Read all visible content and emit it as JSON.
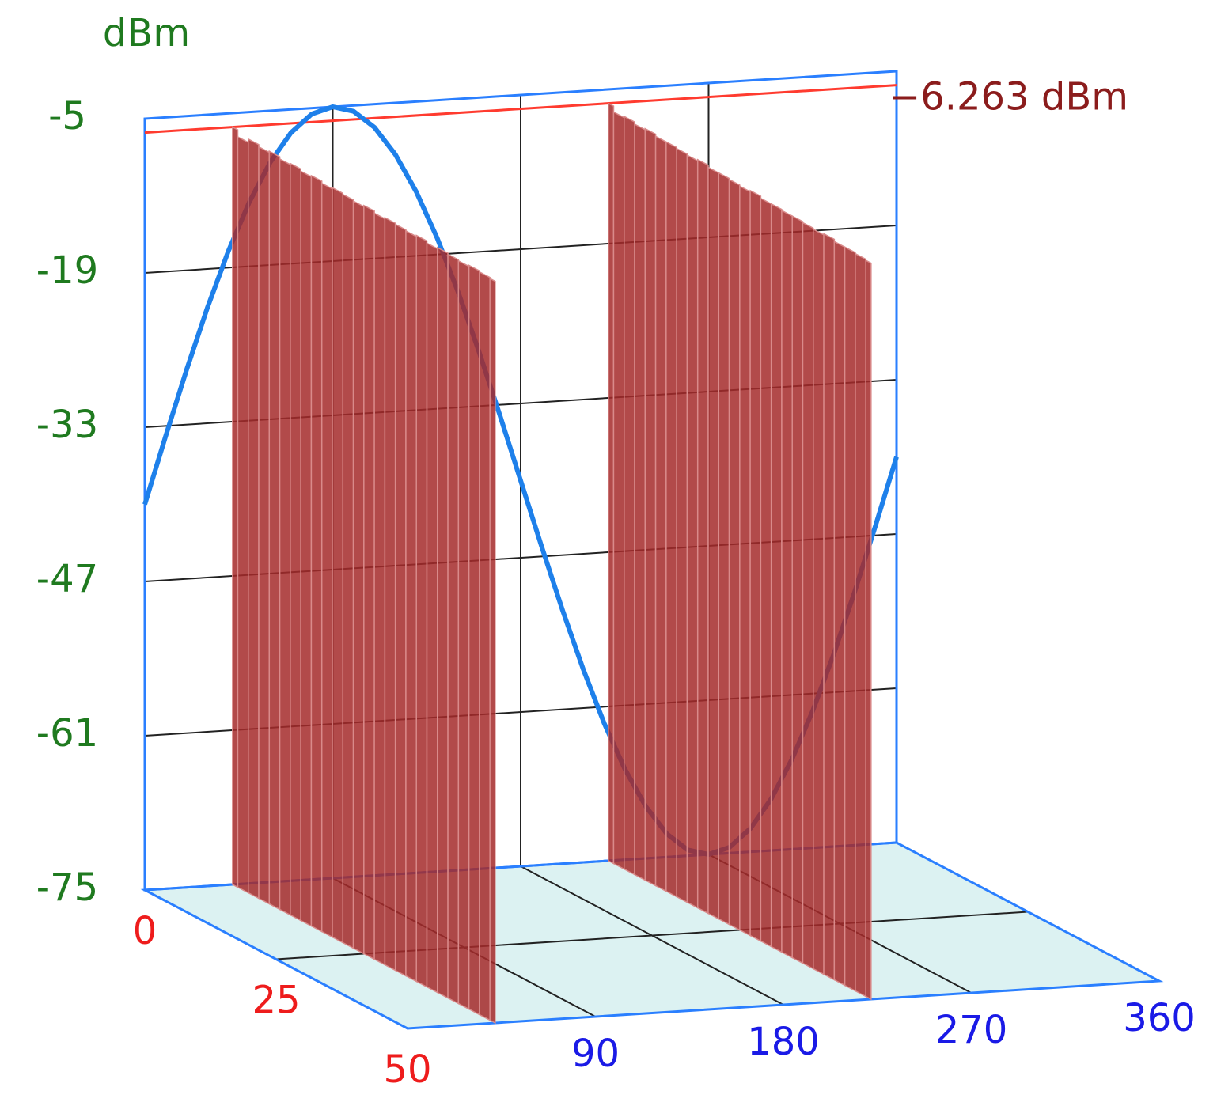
{
  "chart_data": {
    "type": "bar3d",
    "ylabel": "dBm",
    "ylim": [
      -75,
      -5
    ],
    "yticks": [
      -75,
      -61,
      -47,
      -33,
      -19,
      -5
    ],
    "xlim": [
      0,
      360
    ],
    "xticks": [
      90,
      180,
      270,
      360
    ],
    "zlim": [
      0,
      50
    ],
    "zticks": [
      0,
      25,
      50
    ],
    "z": [
      0,
      2,
      4,
      6,
      8,
      10,
      12,
      14,
      16,
      18,
      20,
      22,
      24,
      26,
      28,
      30,
      32,
      34,
      36,
      38,
      40,
      42,
      44,
      46,
      48,
      50
    ],
    "bar_color": "#a52a2a",
    "series": [
      {
        "x": 42,
        "values": [
          -6.263,
          -6.9,
          -6.6,
          -6.8,
          -6.7,
          -6.9,
          -6.8,
          -7.0,
          -6.9,
          -7.1,
          -7.0,
          -7.1,
          -7.2,
          -7.1,
          -7.3,
          -7.2,
          -7.3,
          -7.4,
          -7.3,
          -7.5,
          -7.4,
          -7.5,
          -7.6,
          -7.5,
          -7.6,
          -7.7
        ]
      },
      {
        "x": 222,
        "values": [
          -6.263,
          -6.8,
          -6.7,
          -6.9,
          -6.8,
          -7.0,
          -7.0,
          -7.1,
          -7.2,
          -7.1,
          -7.3,
          -7.3,
          -7.4,
          -7.5,
          -7.4,
          -7.6,
          -7.6,
          -7.7,
          -7.7,
          -7.8,
          -7.9,
          -7.8,
          -8.0,
          -8.0,
          -8.1,
          -8.2
        ]
      }
    ],
    "line": {
      "color": "#1e80ea",
      "x": [
        0,
        10,
        20,
        30,
        40,
        50,
        60,
        70,
        80,
        90,
        100,
        110,
        120,
        130,
        140,
        150,
        160,
        170,
        180,
        190,
        200,
        210,
        220,
        230,
        240,
        250,
        260,
        270,
        280,
        290,
        300,
        310,
        320,
        330,
        340,
        350,
        360
      ],
      "values": [
        -40,
        -33.92,
        -28.03,
        -22.5,
        -17.5,
        -13.19,
        -9.69,
        -7.11,
        -5.53,
        -5,
        -5.53,
        -7.11,
        -9.69,
        -13.19,
        -17.5,
        -22.5,
        -28.03,
        -33.92,
        -40,
        -46.08,
        -51.97,
        -57.5,
        -62.5,
        -66.81,
        -70.31,
        -72.89,
        -74.47,
        -75,
        -74.47,
        -72.89,
        -70.31,
        -66.81,
        -62.5,
        -57.5,
        -51.97,
        -46.08,
        -40
      ]
    },
    "marker": {
      "value": -6.263,
      "label": "−6.263 dBm",
      "color": "#ff3b2f"
    }
  }
}
